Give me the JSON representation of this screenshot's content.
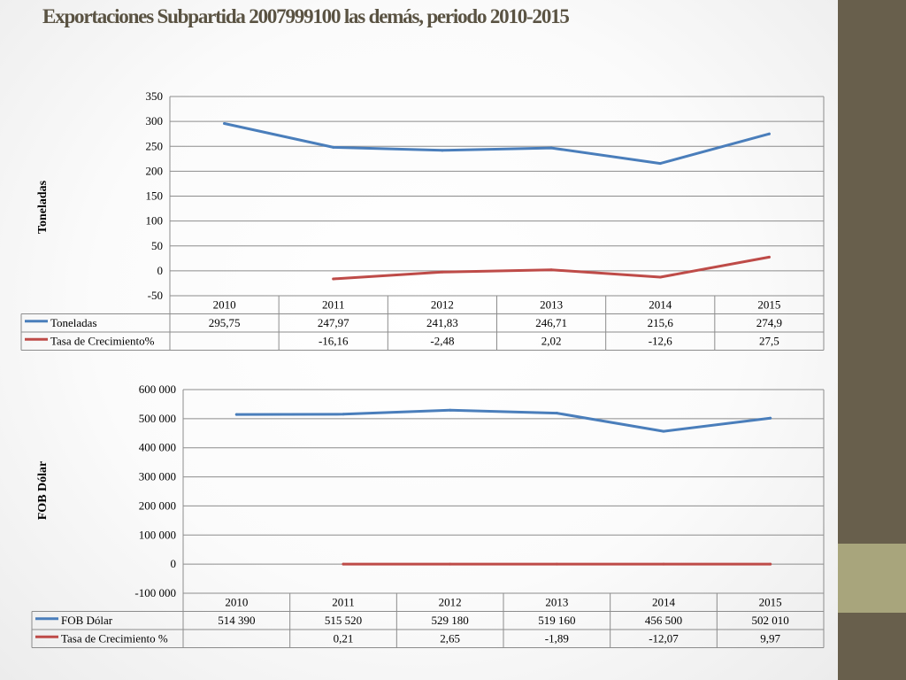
{
  "title": "Exportaciones  Subpartida 2007999100 las demás, periodo 2010-2015",
  "colors": {
    "series_blue": "#4a7ebb",
    "series_red": "#be4b48",
    "band_dark": "#685f4c",
    "band_light": "#a8a57c"
  },
  "chart_data": [
    {
      "type": "line",
      "ylabel": "Toneladas",
      "categories": [
        "2010",
        "2011",
        "2012",
        "2013",
        "2014",
        "2015"
      ],
      "ylim": [
        -50,
        350
      ],
      "yticks": [
        -50,
        0,
        50,
        100,
        150,
        200,
        250,
        300,
        350
      ],
      "ytick_labels": [
        "-50",
        "0",
        "50",
        "100",
        "150",
        "200",
        "250",
        "300",
        "350"
      ],
      "grid": true,
      "legend": "data table below chart",
      "series": [
        {
          "name": "Toneladas",
          "color": "#4a7ebb",
          "values": [
            295.75,
            247.97,
            241.83,
            246.71,
            215.6,
            274.9
          ],
          "labels": [
            "295,75",
            "247,97",
            "241,83",
            "246,71",
            "215,6",
            "274,9"
          ]
        },
        {
          "name": "Tasa de Crecimiento%",
          "color": "#be4b48",
          "values": [
            null,
            -16.16,
            -2.48,
            2.02,
            -12.6,
            27.5
          ],
          "labels": [
            "",
            "-16,16",
            "-2,48",
            "2,02",
            "-12,6",
            "27,5"
          ]
        }
      ]
    },
    {
      "type": "line",
      "ylabel": "FOB  Dólar",
      "categories": [
        "2010",
        "2011",
        "2012",
        "2013",
        "2014",
        "2015"
      ],
      "ylim": [
        -100000,
        600000
      ],
      "yticks": [
        -100000,
        0,
        100000,
        200000,
        300000,
        400000,
        500000,
        600000
      ],
      "ytick_labels": [
        "-100 000",
        "0",
        "100 000",
        "200 000",
        "300 000",
        "400 000",
        "500 000",
        "600 000"
      ],
      "grid": true,
      "legend": "data table below chart",
      "series": [
        {
          "name": "FOB Dólar",
          "color": "#4a7ebb",
          "values": [
            514390,
            515520,
            529180,
            519160,
            456500,
            502010
          ],
          "labels": [
            "514 390",
            "515 520",
            "529 180",
            "519 160",
            "456 500",
            "502 010"
          ]
        },
        {
          "name": "Tasa de Crecimiento %",
          "color": "#be4b48",
          "values": [
            null,
            0.21,
            2.65,
            -1.89,
            -12.07,
            9.97
          ],
          "labels": [
            "",
            "0,21",
            "2,65",
            "-1,89",
            "-12,07",
            "9,97"
          ]
        }
      ]
    }
  ]
}
